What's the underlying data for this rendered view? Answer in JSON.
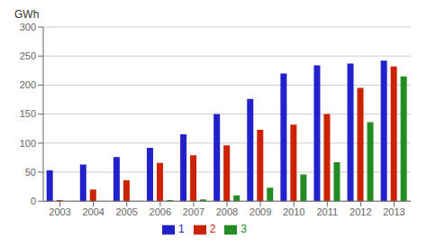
{
  "chart_data": {
    "type": "bar",
    "ylabel": "GWh",
    "categories": [
      "2003",
      "2004",
      "2005",
      "2006",
      "2007",
      "2008",
      "2009",
      "2010",
      "2011",
      "2012",
      "2013"
    ],
    "series": [
      {
        "name": "1",
        "color": "#2222CC",
        "values": [
          53,
          63,
          76,
          92,
          115,
          150,
          176,
          220,
          234,
          237,
          242
        ]
      },
      {
        "name": "2",
        "color": "#CC2200",
        "values": [
          2,
          20,
          36,
          66,
          79,
          96,
          123,
          132,
          150,
          195,
          232
        ]
      },
      {
        "name": "3",
        "color": "#228B22",
        "values": [
          0,
          0,
          0,
          2,
          3,
          10,
          23,
          46,
          67,
          136,
          215
        ]
      }
    ],
    "ylim": [
      0,
      300
    ],
    "yticks": [
      0,
      50,
      100,
      150,
      200,
      250,
      300
    ],
    "grid": true,
    "legend": "bottom"
  }
}
